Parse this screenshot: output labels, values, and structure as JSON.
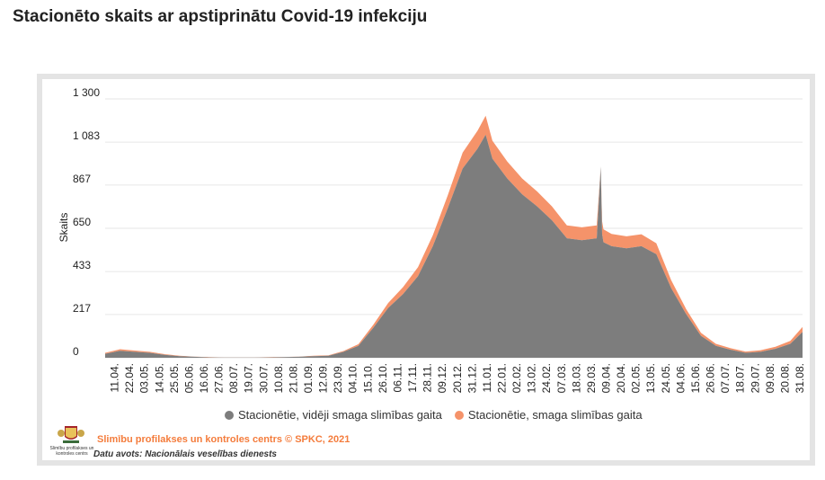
{
  "page": {
    "title": "Stacionēto skaits ar apstiprinātu Covid-19 infekciju",
    "credit": "Slimību profilakses un kontroles centrs © SPKC, 2021",
    "source": "Datu avots: Nacionālais veselības dienests",
    "logo_caption": "Slimību profilakses un kontroles centrs"
  },
  "colors": {
    "moderate": "#7d7d7d",
    "severe": "#f5936a",
    "grid": "#e6e6e6",
    "axis_text": "#222222"
  },
  "chart_data": {
    "type": "area",
    "stacked": true,
    "ylabel": "Skaits",
    "ylim": [
      0,
      1300
    ],
    "yticks": [
      "0",
      "217",
      "433",
      "650",
      "867",
      "1 083",
      "1 300"
    ],
    "ytick_values": [
      0,
      217,
      433,
      650,
      867,
      1083,
      1300
    ],
    "x_ticks": [
      "11.04.",
      "22.04.",
      "03.05.",
      "14.05.",
      "25.05.",
      "05.06.",
      "16.06.",
      "27.06.",
      "08.07.",
      "19.07.",
      "30.07.",
      "10.08.",
      "21.08.",
      "01.09.",
      "12.09.",
      "23.09.",
      "04.10.",
      "15.10.",
      "26.10.",
      "06.11.",
      "17.11.",
      "28.11.",
      "09.12.",
      "20.12.",
      "31.12.",
      "11.01.",
      "22.01.",
      "02.02.",
      "13.02.",
      "24.02.",
      "07.03.",
      "18.03.",
      "29.03.",
      "09.04.",
      "20.04.",
      "02.05.",
      "13.05.",
      "24.05.",
      "04.06.",
      "15.06.",
      "26.06.",
      "07.07.",
      "18.07.",
      "29.07.",
      "09.08.",
      "20.08.",
      "31.08."
    ],
    "x_range": [
      "2020-04-04",
      "2021-09-01"
    ],
    "grid": true,
    "legend_position": "bottom",
    "series": [
      {
        "name": "Stacionētie, vidēji smaga slimības gaita",
        "x": [
          "2020-04-04",
          "2020-04-15",
          "2020-04-26",
          "2020-05-07",
          "2020-05-18",
          "2020-05-29",
          "2020-06-09",
          "2020-06-20",
          "2020-07-01",
          "2020-07-12",
          "2020-07-23",
          "2020-08-03",
          "2020-08-14",
          "2020-08-25",
          "2020-09-05",
          "2020-09-16",
          "2020-09-27",
          "2020-10-08",
          "2020-10-19",
          "2020-10-30",
          "2020-11-10",
          "2020-11-21",
          "2020-12-02",
          "2020-12-13",
          "2020-12-24",
          "2021-01-04",
          "2021-01-10",
          "2021-01-15",
          "2021-01-26",
          "2021-02-06",
          "2021-02-17",
          "2021-02-28",
          "2021-03-11",
          "2021-03-22",
          "2021-04-02",
          "2021-04-05",
          "2021-04-06",
          "2021-04-07",
          "2021-04-13",
          "2021-04-24",
          "2021-05-05",
          "2021-05-16",
          "2021-05-27",
          "2021-06-07",
          "2021-06-18",
          "2021-06-29",
          "2021-07-10",
          "2021-07-21",
          "2021-08-01",
          "2021-08-12",
          "2021-08-23",
          "2021-09-01"
        ],
        "y": [
          20,
          35,
          30,
          25,
          15,
          8,
          5,
          2,
          1,
          1,
          1,
          2,
          3,
          5,
          8,
          10,
          30,
          60,
          150,
          250,
          320,
          410,
          560,
          750,
          950,
          1050,
          1120,
          1000,
          900,
          820,
          760,
          690,
          600,
          590,
          600,
          960,
          620,
          580,
          560,
          550,
          560,
          520,
          350,
          220,
          110,
          60,
          40,
          25,
          30,
          45,
          70,
          130
        ]
      },
      {
        "name": "Stacionētie, smaga slimības gaita",
        "x": [
          "2020-04-04",
          "2020-04-15",
          "2020-04-26",
          "2020-05-07",
          "2020-05-18",
          "2020-05-29",
          "2020-06-09",
          "2020-06-20",
          "2020-07-01",
          "2020-07-12",
          "2020-07-23",
          "2020-08-03",
          "2020-08-14",
          "2020-08-25",
          "2020-09-05",
          "2020-09-16",
          "2020-09-27",
          "2020-10-08",
          "2020-10-19",
          "2020-10-30",
          "2020-11-10",
          "2020-11-21",
          "2020-12-02",
          "2020-12-13",
          "2020-12-24",
          "2021-01-04",
          "2021-01-10",
          "2021-01-15",
          "2021-01-26",
          "2021-02-06",
          "2021-02-17",
          "2021-02-28",
          "2021-03-11",
          "2021-03-22",
          "2021-04-02",
          "2021-04-05",
          "2021-04-06",
          "2021-04-07",
          "2021-04-13",
          "2021-04-24",
          "2021-05-05",
          "2021-05-16",
          "2021-05-27",
          "2021-06-07",
          "2021-06-18",
          "2021-06-29",
          "2021-07-10",
          "2021-07-21",
          "2021-08-01",
          "2021-08-12",
          "2021-08-23",
          "2021-09-01"
        ],
        "y": [
          5,
          8,
          6,
          5,
          3,
          2,
          1,
          1,
          1,
          1,
          1,
          1,
          1,
          1,
          2,
          2,
          4,
          8,
          15,
          25,
          35,
          45,
          55,
          65,
          80,
          90,
          95,
          90,
          85,
          80,
          75,
          70,
          65,
          65,
          65,
          0,
          65,
          65,
          62,
          60,
          60,
          55,
          40,
          25,
          15,
          10,
          8,
          6,
          8,
          10,
          15,
          25
        ]
      }
    ]
  }
}
